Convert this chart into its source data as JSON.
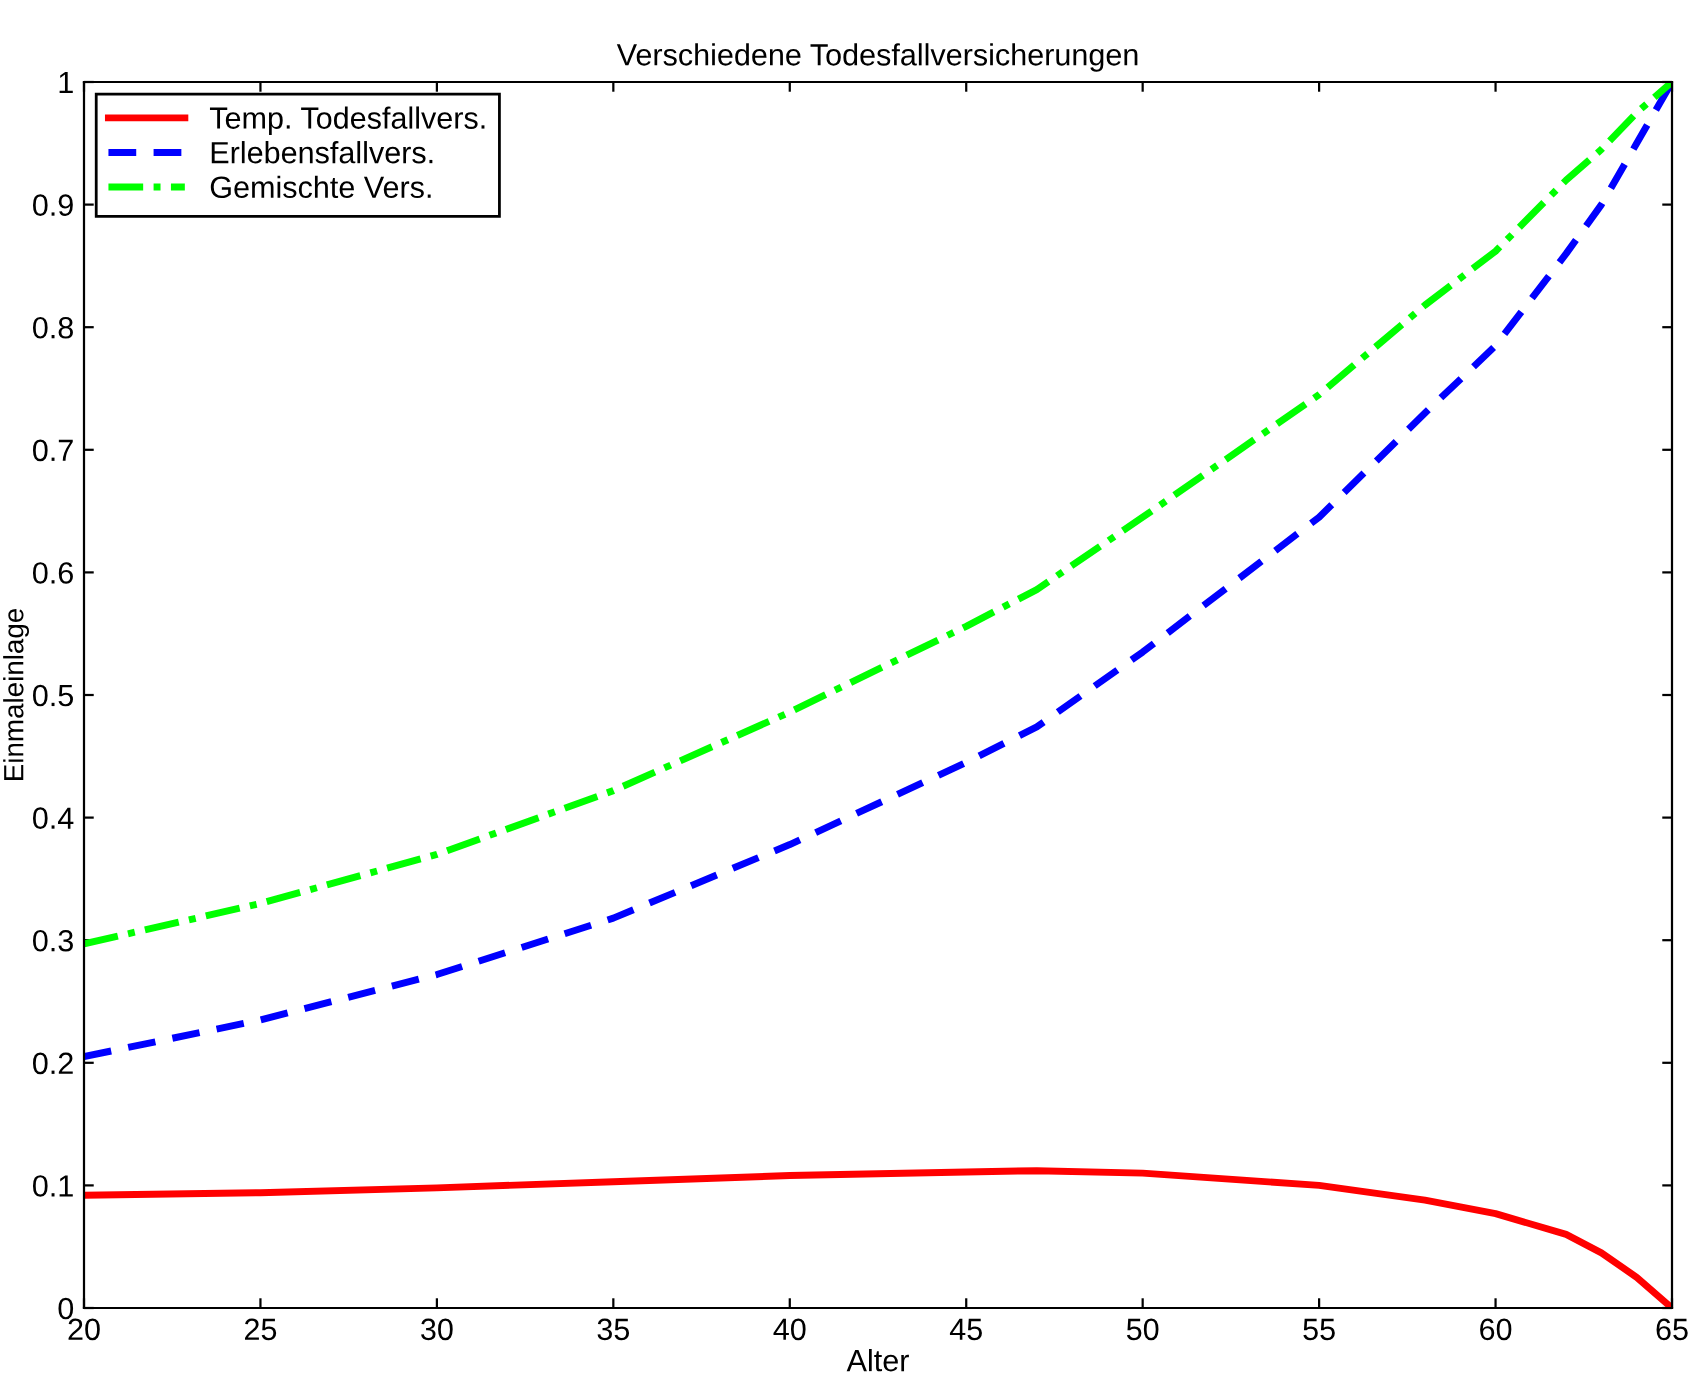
{
  "chart_data": {
    "type": "line",
    "title": "Verschiedene Todesfallversicherungen",
    "xlabel": "Alter",
    "ylabel": "Einmaleinlage",
    "x": [
      20,
      25,
      30,
      35,
      40,
      45,
      47,
      50,
      55,
      58,
      60,
      62,
      63,
      64,
      65
    ],
    "series": [
      {
        "name": "Temp. Todesfallvers.",
        "color": "#ff0000",
        "line_style": "solid",
        "values": [
          0.092,
          0.094,
          0.098,
          0.103,
          0.108,
          0.111,
          0.112,
          0.11,
          0.1,
          0.088,
          0.077,
          0.06,
          0.045,
          0.025,
          0.0
        ]
      },
      {
        "name": "Erlebensfallvers.",
        "color": "#0000ff",
        "line_style": "dashed",
        "values": [
          0.205,
          0.235,
          0.272,
          0.318,
          0.378,
          0.445,
          0.474,
          0.535,
          0.645,
          0.73,
          0.785,
          0.86,
          0.9,
          0.95,
          1.0
        ]
      },
      {
        "name": "Gemischte Vers.",
        "color": "#00ff00",
        "line_style": "dashdot",
        "values": [
          0.297,
          0.33,
          0.37,
          0.422,
          0.486,
          0.556,
          0.586,
          0.645,
          0.745,
          0.818,
          0.862,
          0.92,
          0.945,
          0.975,
          1.0
        ]
      }
    ],
    "xlim": [
      20,
      65
    ],
    "xticks": [
      20,
      25,
      30,
      35,
      40,
      45,
      50,
      55,
      60,
      65
    ],
    "ylim": [
      0,
      1
    ],
    "yticks": [
      0,
      0.1,
      0.2,
      0.3,
      0.4,
      0.5,
      0.6,
      0.7,
      0.8,
      0.9,
      1
    ],
    "grid": false,
    "legend": "top left",
    "marker": "none"
  }
}
